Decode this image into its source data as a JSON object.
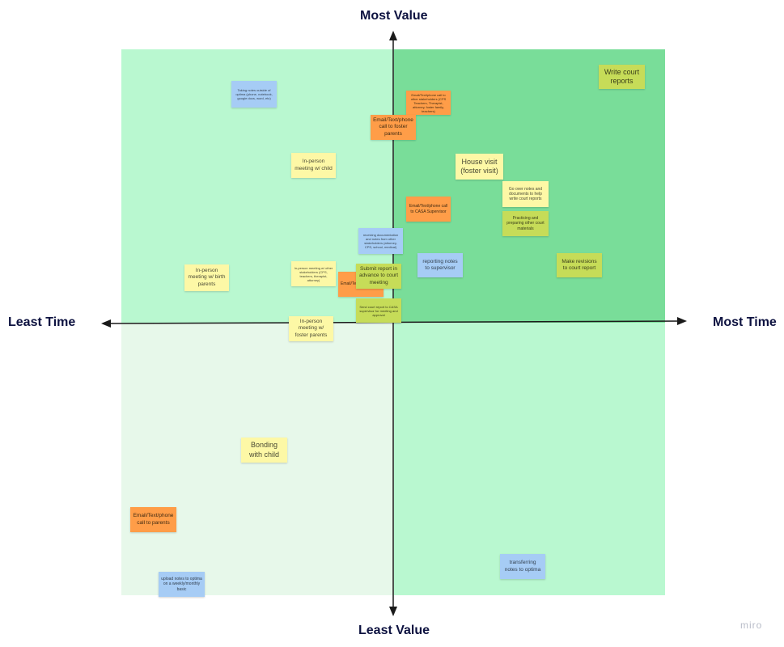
{
  "axes": {
    "top": "Most Value",
    "bottom": "Least Value",
    "left": "Least Time",
    "right": "Most Time"
  },
  "notes": {
    "write_court_reports": "Write court reports",
    "taking_notes_outside": "Taking notes outside of optima (phone, notebook, google docs, word, etc)",
    "email_stakeholders": "Email/Text/phone call to other stakeholders (CPS Teachers, Therapist, attorney, foster family, teachers)",
    "email_foster_parents": "Email/Text/phone call to foster parents",
    "in_person_child": "In-person meeting w/ child",
    "house_visit": "House visit (foster visit)",
    "go_over_notes": "Go over notes and documents to help write court reports",
    "email_casa_supervisor": "Email/Text/phone call to CASA Supervisor",
    "practicing_preparing": "Practicing and preparing other court materials",
    "receiving_documentation": "receiving documentation and notes from other stakeholders (attorney, CPS, school, medical)",
    "reporting_notes": "reporting notes to supervisor",
    "make_revisions": "Make revisions to court report",
    "in_person_birth_parents": "In-person meeting w/ birth parents",
    "in_person_stakeholders": "In-person meeting w/ other stakeholders (CPS, teachers, therapist, attorney)",
    "email_hidden": "Email/Text call",
    "submit_report": "Submit report in advance to court meeting",
    "send_court_report": "Send court report to CASA supervisor for meeting and approval",
    "in_person_foster_parents": "In-person meeting w/ foster parents",
    "bonding_with_child": "Bonding with child",
    "email_parents": "Email/Text/phone call to parents",
    "transferring_notes": "transferring notes to optima",
    "upload_notes": "upload notes to optima on a weekly/monthly basic"
  },
  "colors": {
    "quadrant_top_left": "#b9f8d0",
    "quadrant_top_right": "#79dd99",
    "quadrant_bottom_left": "#e7f8ea",
    "quadrant_bottom_right": "#b9f8d0",
    "note_yellow": "#fdf8a6",
    "note_orange": "#ff9d48",
    "note_blue": "#a6ccf5",
    "note_lime": "#c6dc58"
  },
  "watermark": "miro"
}
